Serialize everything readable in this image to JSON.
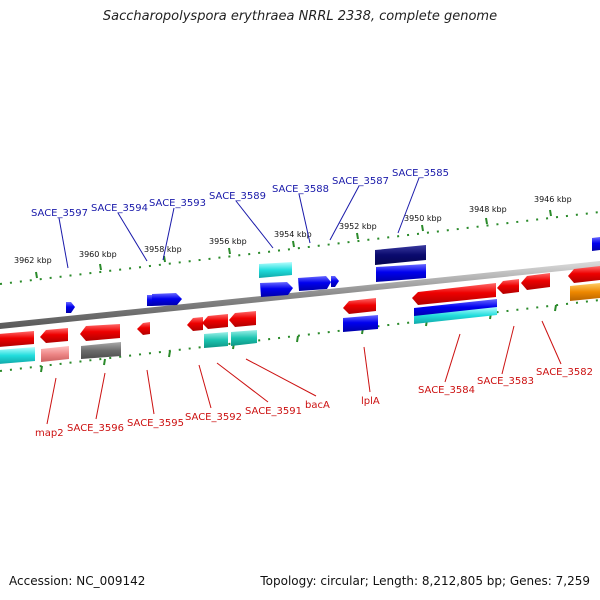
{
  "title": "Saccharopolyspora erythraea NRRL 2338, complete genome",
  "footer": {
    "accession": "Accession: NC_009142",
    "summary": "Topology: circular; Length: 8,212,805 bp; Genes: 7,259"
  },
  "colors": {
    "forward_label": "#1a1aaa",
    "reverse_label": "#cc1111",
    "backbone": "#8a8a8a",
    "tick": "#2a8a2a"
  },
  "scale_ticks": [
    "3962 kbp",
    "3960 kbp",
    "3958 kbp",
    "3956 kbp",
    "3954 kbp",
    "3952 kbp",
    "3950 kbp",
    "3948 kbp",
    "3946 kbp"
  ],
  "forward_labels": [
    "SACE_3597",
    "SACE_3594",
    "SACE_3593",
    "SACE_3589",
    "SACE_3588",
    "SACE_3587",
    "SACE_3585"
  ],
  "reverse_labels": [
    "map2",
    "SACE_3596",
    "SACE_3595",
    "SACE_3592",
    "SACE_3591",
    "bacA",
    "lplA",
    "SACE_3584",
    "SACE_3583",
    "SACE_3582"
  ]
}
